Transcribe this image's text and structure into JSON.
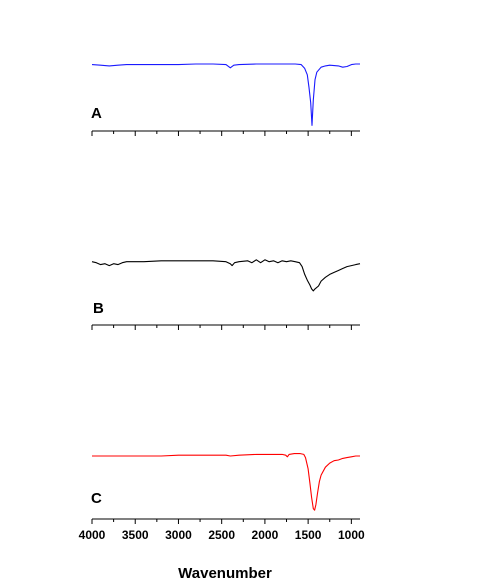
{
  "chart_data": {
    "type": "line",
    "xlabel": "Wavenumber",
    "xlim": [
      4000,
      900
    ],
    "x_reversed": true,
    "x_tick_labels": [
      "4000",
      "3500",
      "3000",
      "2500",
      "2000",
      "1500",
      "1000"
    ],
    "x_major_ticks": [
      4000,
      3500,
      3000,
      2500,
      2000,
      1500,
      1000
    ],
    "x_minor_step": 250,
    "ylim": [
      0,
      1
    ],
    "y_tick_labels": [],
    "grid": false,
    "legend": "none",
    "series": [
      {
        "label": "A",
        "color": "#1a1aff",
        "points": [
          [
            4000,
            0.893
          ],
          [
            3900,
            0.884
          ],
          [
            3800,
            0.875
          ],
          [
            3700,
            0.884
          ],
          [
            3600,
            0.893
          ],
          [
            3400,
            0.893
          ],
          [
            3200,
            0.893
          ],
          [
            3000,
            0.893
          ],
          [
            2800,
            0.902
          ],
          [
            2600,
            0.902
          ],
          [
            2450,
            0.893
          ],
          [
            2400,
            0.848
          ],
          [
            2360,
            0.884
          ],
          [
            2300,
            0.893
          ],
          [
            2100,
            0.902
          ],
          [
            1900,
            0.902
          ],
          [
            1750,
            0.902
          ],
          [
            1650,
            0.902
          ],
          [
            1580,
            0.893
          ],
          [
            1540,
            0.839
          ],
          [
            1510,
            0.75
          ],
          [
            1490,
            0.571
          ],
          [
            1470,
            0.357
          ],
          [
            1455,
            0.036
          ],
          [
            1440,
            0.393
          ],
          [
            1420,
            0.679
          ],
          [
            1400,
            0.786
          ],
          [
            1350,
            0.857
          ],
          [
            1300,
            0.875
          ],
          [
            1250,
            0.884
          ],
          [
            1150,
            0.875
          ],
          [
            1100,
            0.857
          ],
          [
            1050,
            0.866
          ],
          [
            1000,
            0.893
          ],
          [
            950,
            0.902
          ],
          [
            900,
            0.902
          ]
        ]
      },
      {
        "label": "B",
        "color": "#000000",
        "points": [
          [
            4000,
            0.868
          ],
          [
            3950,
            0.853
          ],
          [
            3900,
            0.824
          ],
          [
            3850,
            0.838
          ],
          [
            3800,
            0.809
          ],
          [
            3750,
            0.838
          ],
          [
            3700,
            0.824
          ],
          [
            3650,
            0.853
          ],
          [
            3600,
            0.868
          ],
          [
            3500,
            0.868
          ],
          [
            3400,
            0.868
          ],
          [
            3200,
            0.882
          ],
          [
            3000,
            0.882
          ],
          [
            2800,
            0.882
          ],
          [
            2600,
            0.882
          ],
          [
            2450,
            0.868
          ],
          [
            2400,
            0.838
          ],
          [
            2380,
            0.809
          ],
          [
            2350,
            0.853
          ],
          [
            2300,
            0.868
          ],
          [
            2200,
            0.882
          ],
          [
            2150,
            0.853
          ],
          [
            2100,
            0.897
          ],
          [
            2050,
            0.853
          ],
          [
            2000,
            0.897
          ],
          [
            1950,
            0.868
          ],
          [
            1900,
            0.882
          ],
          [
            1850,
            0.853
          ],
          [
            1800,
            0.882
          ],
          [
            1750,
            0.868
          ],
          [
            1700,
            0.882
          ],
          [
            1650,
            0.868
          ],
          [
            1600,
            0.853
          ],
          [
            1570,
            0.794
          ],
          [
            1540,
            0.676
          ],
          [
            1510,
            0.588
          ],
          [
            1480,
            0.515
          ],
          [
            1460,
            0.456
          ],
          [
            1440,
            0.426
          ],
          [
            1420,
            0.456
          ],
          [
            1380,
            0.5
          ],
          [
            1350,
            0.574
          ],
          [
            1300,
            0.632
          ],
          [
            1250,
            0.676
          ],
          [
            1200,
            0.706
          ],
          [
            1150,
            0.735
          ],
          [
            1100,
            0.765
          ],
          [
            1050,
            0.794
          ],
          [
            1000,
            0.809
          ],
          [
            950,
            0.824
          ],
          [
            900,
            0.838
          ]
        ]
      },
      {
        "label": "C",
        "color": "#ff0000",
        "points": [
          [
            4000,
            0.881
          ],
          [
            3800,
            0.881
          ],
          [
            3600,
            0.881
          ],
          [
            3400,
            0.881
          ],
          [
            3200,
            0.881
          ],
          [
            3000,
            0.893
          ],
          [
            2800,
            0.893
          ],
          [
            2600,
            0.893
          ],
          [
            2450,
            0.893
          ],
          [
            2400,
            0.881
          ],
          [
            2300,
            0.893
          ],
          [
            2100,
            0.905
          ],
          [
            1900,
            0.905
          ],
          [
            1800,
            0.905
          ],
          [
            1760,
            0.893
          ],
          [
            1740,
            0.869
          ],
          [
            1720,
            0.905
          ],
          [
            1660,
            0.917
          ],
          [
            1590,
            0.917
          ],
          [
            1550,
            0.905
          ],
          [
            1530,
            0.857
          ],
          [
            1500,
            0.69
          ],
          [
            1480,
            0.476
          ],
          [
            1460,
            0.262
          ],
          [
            1440,
            0.095
          ],
          [
            1425,
            0.071
          ],
          [
            1410,
            0.155
          ],
          [
            1390,
            0.333
          ],
          [
            1370,
            0.5
          ],
          [
            1350,
            0.595
          ],
          [
            1300,
            0.714
          ],
          [
            1250,
            0.774
          ],
          [
            1200,
            0.81
          ],
          [
            1150,
            0.821
          ],
          [
            1100,
            0.845
          ],
          [
            1050,
            0.857
          ],
          [
            1000,
            0.869
          ],
          [
            950,
            0.881
          ],
          [
            900,
            0.881
          ]
        ]
      }
    ]
  }
}
